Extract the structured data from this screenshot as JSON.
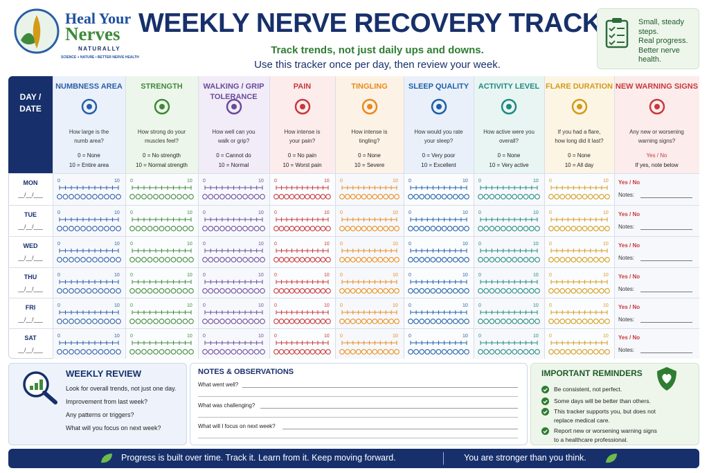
{
  "logo": {
    "line1": "Heal Your",
    "line2": "Nerves",
    "line3": "NATURALLY",
    "tagline": "SCIENCE + NATURE • BETTER NERVE HEALTH"
  },
  "header": {
    "title": "WEEKLY NERVE RECOVERY TRACKER",
    "subtitle": "Track trends, not just daily ups and downs.",
    "instruction": "Use this tracker once per day, then review your week."
  },
  "motto": {
    "lines": [
      "Small, steady steps.",
      "Real progress.",
      "Better nerve health."
    ]
  },
  "table": {
    "day_header": "DAY / DATE",
    "columns": [
      {
        "title": "NUMBNESS AREA",
        "question": "How large is the numb area?",
        "scale": [
          "0 = None",
          "10 = Entire area"
        ],
        "color": "#2a5ea8",
        "tint": "#eaf1fa"
      },
      {
        "title": "STRENGTH",
        "question": "How strong do your muscles feel?",
        "scale": [
          "0 = No strength",
          "10 = Normal strength"
        ],
        "color": "#3f8a3a",
        "tint": "#edf6ea"
      },
      {
        "title": "WALKING / GRIP TOLERANCE",
        "question": "How well can you walk or grip?",
        "scale": [
          "0 = Cannot do",
          "10 = Normal"
        ],
        "color": "#6a4a9c",
        "tint": "#f1ecf7"
      },
      {
        "title": "PAIN",
        "question": "How intense is your pain?",
        "scale": [
          "0 = No pain",
          "10 = Worst pain"
        ],
        "color": "#c8393a",
        "tint": "#fcecec"
      },
      {
        "title": "TINGLING",
        "question": "How intense is tingling?",
        "scale": [
          "0 = None",
          "10 = Severe"
        ],
        "color": "#e88a1a",
        "tint": "#fdf2e6"
      },
      {
        "title": "SLEEP QUALITY",
        "question": "How would you rate your sleep?",
        "scale": [
          "0 = Very poor",
          "10 = Excellent"
        ],
        "color": "#1d5fa8",
        "tint": "#e9f0f9"
      },
      {
        "title": "ACTIVITY LEVEL",
        "question": "How active were you overall?",
        "scale": [
          "0 = None",
          "10 = Very active"
        ],
        "color": "#1f8a80",
        "tint": "#e8f5f3"
      },
      {
        "title": "FLARE DURATION",
        "question": "If you had a flare, how long did it last?",
        "scale": [
          "0 = None",
          "10 = All day"
        ],
        "color": "#d49a1a",
        "tint": "#fcf5e4"
      },
      {
        "title": "NEW WARNING SIGNS",
        "question": "Any new or worsening warning signs?",
        "scale": [
          "Yes / No",
          "If yes, note below"
        ],
        "color": "#c8393a",
        "tint": "#fcecec"
      }
    ],
    "scale_ends": [
      0,
      10
    ],
    "days": [
      "MON",
      "TUE",
      "WED",
      "THU",
      "FRI",
      "SAT"
    ],
    "date_blank": "__/__/___",
    "yes_no": "Yes / No",
    "notes_label": "Notes:"
  },
  "weekly_review": {
    "title": "WEEKLY REVIEW",
    "items": [
      "Look for overall trends, not just one day.",
      "Improvement from last week?",
      "Any patterns or triggers?",
      "What will you focus on next week?"
    ]
  },
  "notes": {
    "title": "NOTES & OBSERVATIONS",
    "prompts": [
      "What went well?",
      "What was challenging?",
      "What will I focus on next week?"
    ]
  },
  "reminders": {
    "title": "IMPORTANT REMINDERS",
    "items": [
      "Be consistent, not perfect.",
      "Some days will be better than others.",
      "This tracker supports you, but does not replace medical care.",
      "Report new or worsening warning signs to a healthcare professional."
    ]
  },
  "footer": {
    "left": "Progress is built over time. Track it. Learn from it. Keep moving forward.",
    "right": "You are stronger than you think."
  }
}
